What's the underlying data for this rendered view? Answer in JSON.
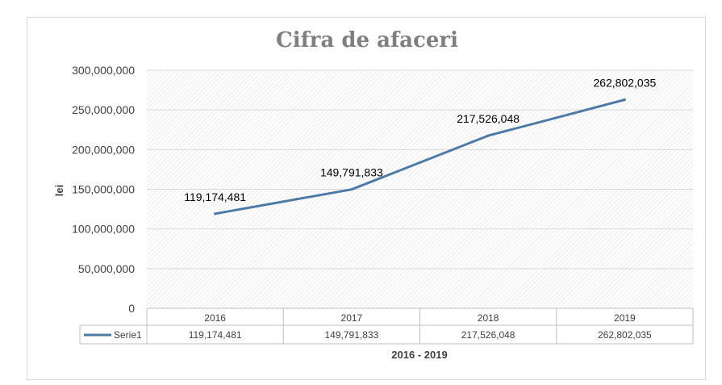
{
  "chart_data": {
    "type": "line",
    "title": "Cifra de afaceri",
    "xlabel": "2016 - 2019",
    "ylabel": "lei",
    "categories": [
      "2016",
      "2017",
      "2018",
      "2019"
    ],
    "series": [
      {
        "name": "Serie1",
        "values": [
          119174481,
          149791833,
          217526048,
          262802035
        ],
        "labels": [
          "119,174,481",
          "149,791,833",
          "217,526,048",
          "262,802,035"
        ],
        "color": "#4e7aa8"
      }
    ],
    "yticks": [
      "0",
      "50,000,000",
      "100,000,000",
      "150,000,000",
      "200,000,000",
      "250,000,000",
      "300,000,000"
    ],
    "ylim": [
      0,
      300000000
    ],
    "grid": true,
    "data_table": true,
    "legend": "data-table"
  }
}
